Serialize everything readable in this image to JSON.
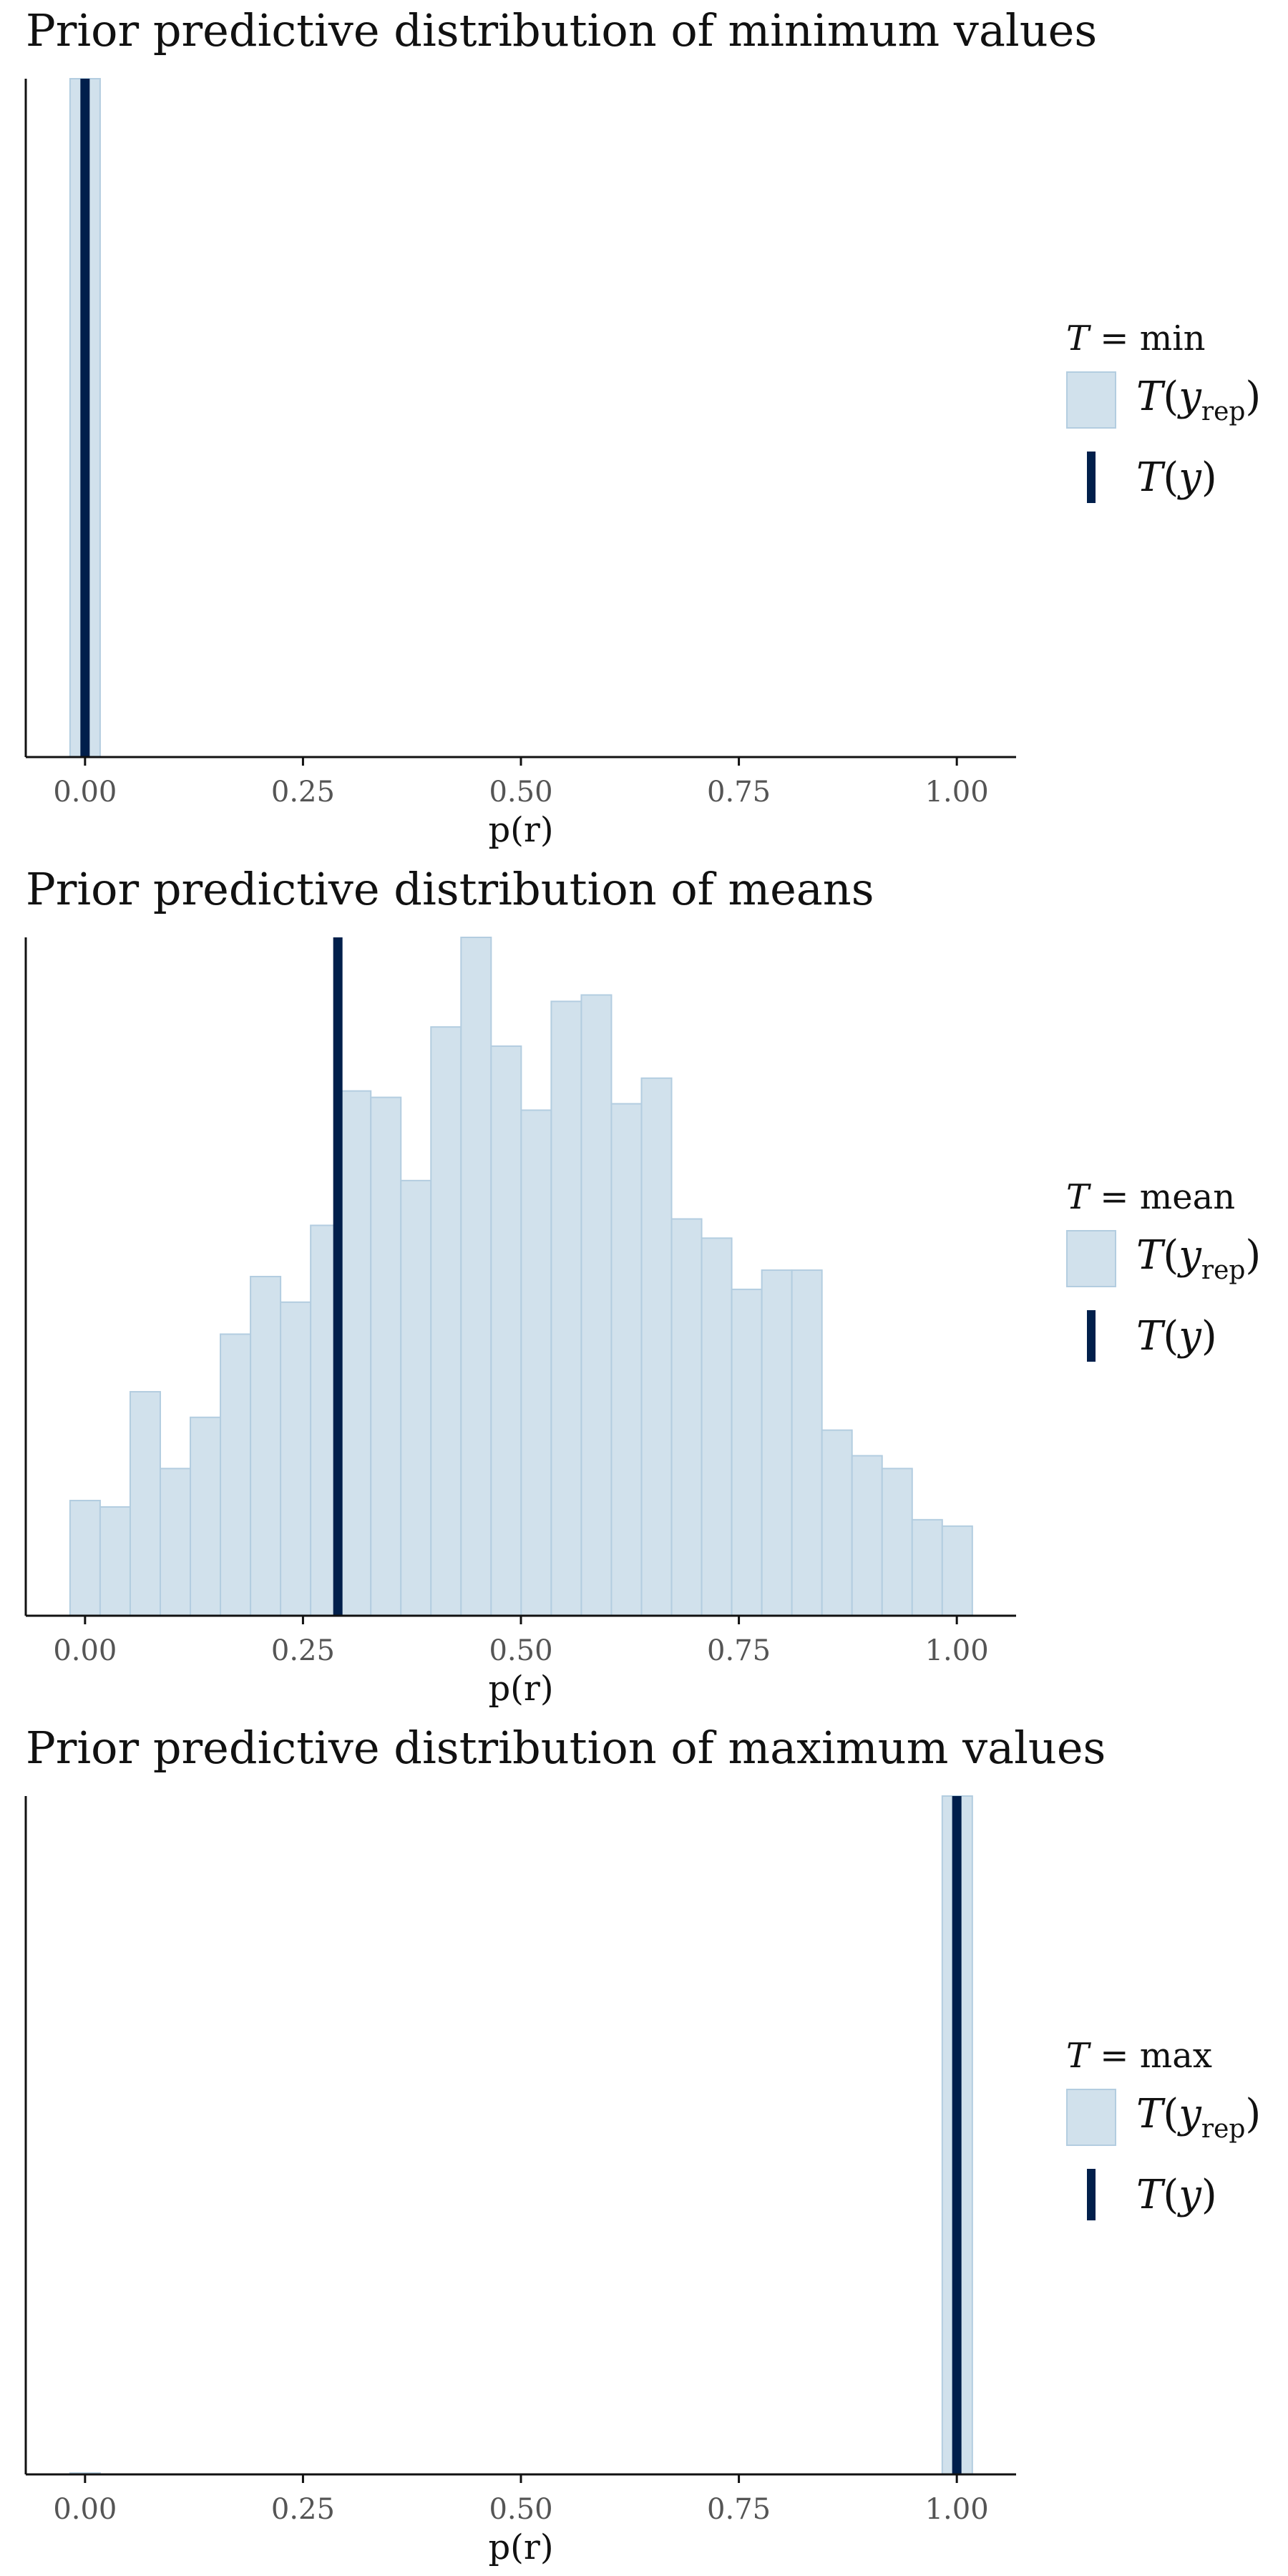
{
  "colors": {
    "fill": "#d1e1ec",
    "outline": "#b3cde0",
    "observed": "#011f4b",
    "axis": "#111111",
    "tick_text": "#555555"
  },
  "chart_data": [
    {
      "type": "bar",
      "title": "Prior predictive distribution of minimum values",
      "xlabel": "p(r)",
      "ylabel": "",
      "xlim": [
        -0.068,
        1.068
      ],
      "xticks": [
        0.0,
        0.25,
        0.5,
        0.75,
        1.0
      ],
      "xtick_labels": [
        "0.00",
        "0.25",
        "0.50",
        "0.75",
        "1.00"
      ],
      "bin_width": 0.0345,
      "bin_start": -0.0172,
      "counts": [
        1000
      ],
      "observed": 0.0,
      "legend": {
        "title_var": "T",
        "title_stat": "min",
        "rep_label_base": "T",
        "rep_label_var": "y",
        "rep_label_sub": "rep",
        "obs_label_base": "T",
        "obs_label_var": "y"
      }
    },
    {
      "type": "bar",
      "title": "Prior predictive distribution of means",
      "xlabel": "p(r)",
      "ylabel": "",
      "xlim": [
        -0.068,
        1.068
      ],
      "xticks": [
        0.0,
        0.25,
        0.5,
        0.75,
        1.0
      ],
      "xtick_labels": [
        "0.00",
        "0.25",
        "0.50",
        "0.75",
        "1.00"
      ],
      "bin_width": 0.0345,
      "bin_start": -0.0172,
      "counts": [
        18,
        17,
        35,
        23,
        31,
        44,
        53,
        49,
        61,
        82,
        81,
        68,
        92,
        106,
        89,
        79,
        96,
        97,
        80,
        84,
        62,
        59,
        51,
        54,
        54,
        29,
        25,
        23,
        15,
        14
      ],
      "observed": 0.29,
      "legend": {
        "title_var": "T",
        "title_stat": "mean",
        "rep_label_base": "T",
        "rep_label_var": "y",
        "rep_label_sub": "rep",
        "obs_label_base": "T",
        "obs_label_var": "y"
      }
    },
    {
      "type": "bar",
      "title": "Prior predictive distribution of maximum values",
      "xlabel": "p(r)",
      "ylabel": "",
      "xlim": [
        -0.068,
        1.068
      ],
      "xticks": [
        0.0,
        0.25,
        0.5,
        0.75,
        1.0
      ],
      "xtick_labels": [
        "0.00",
        "0.25",
        "0.50",
        "0.75",
        "1.00"
      ],
      "bin_width": 0.0345,
      "bin_start": -0.0172,
      "counts": [
        2,
        0,
        0,
        0,
        0,
        0,
        0,
        0,
        0,
        0,
        0,
        0,
        0,
        0,
        0,
        0,
        0,
        0,
        0,
        0,
        0,
        0,
        0,
        0,
        0,
        0,
        0,
        0,
        0,
        998
      ],
      "observed": 1.0,
      "legend": {
        "title_var": "T",
        "title_stat": "max",
        "rep_label_base": "T",
        "rep_label_var": "y",
        "rep_label_sub": "rep",
        "obs_label_base": "T",
        "obs_label_var": "y"
      }
    }
  ]
}
